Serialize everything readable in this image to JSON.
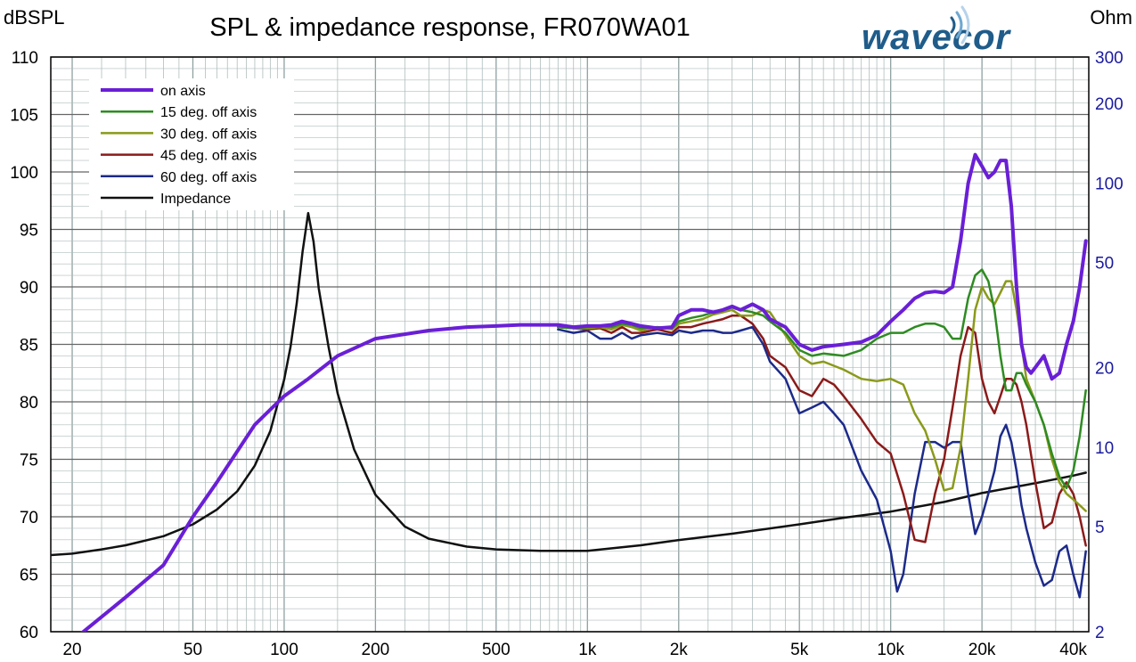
{
  "chart_data": {
    "type": "line",
    "title": "SPL & impedance response, FR070WA01",
    "ylabel": "dBSPL",
    "y2label": "Ohm",
    "xscale": "log",
    "xlim": [
      17,
      45000
    ],
    "ylim": [
      60,
      110
    ],
    "y2lim": [
      2,
      300
    ],
    "y2scale": "log",
    "grid": true,
    "legend_position": "top-left",
    "x_ticks": [
      "20",
      "50",
      "100",
      "200",
      "500",
      "1k",
      "2k",
      "5k",
      "10k",
      "20k",
      "40k"
    ],
    "x_tick_values": [
      20,
      50,
      100,
      200,
      500,
      1000,
      2000,
      5000,
      10000,
      20000,
      40000
    ],
    "y_ticks": [
      "60",
      "65",
      "70",
      "75",
      "80",
      "85",
      "90",
      "95",
      "100",
      "105",
      "110"
    ],
    "y_tick_values": [
      60,
      65,
      70,
      75,
      80,
      85,
      90,
      95,
      100,
      105,
      110
    ],
    "y2_ticks": [
      "2",
      "5",
      "10",
      "20",
      "50",
      "100",
      "200",
      "300"
    ],
    "y2_tick_values": [
      2,
      5,
      10,
      20,
      50,
      100,
      200,
      300
    ],
    "series": [
      {
        "name": "on axis",
        "color": "#6a1fd6",
        "axis": "left",
        "width": 4,
        "x": [
          17,
          20,
          30,
          40,
          50,
          60,
          80,
          100,
          120,
          150,
          200,
          300,
          400,
          500,
          600,
          800,
          900,
          1000,
          1100,
          1200,
          1300,
          1400,
          1500,
          1700,
          1900,
          2000,
          2200,
          2400,
          2600,
          2800,
          3000,
          3200,
          3500,
          3800,
          4000,
          4500,
          5000,
          5500,
          6000,
          7000,
          8000,
          9000,
          10000,
          11000,
          12000,
          13000,
          14000,
          15000,
          16000,
          17000,
          18000,
          19000,
          20000,
          21000,
          22000,
          23000,
          24000,
          25000,
          26000,
          27000,
          28000,
          29000,
          30000,
          32000,
          34000,
          36000,
          38000,
          40000,
          42000,
          44000
        ],
        "y": [
          57.0,
          59.2,
          63.0,
          65.8,
          70.0,
          73.0,
          78.0,
          80.5,
          82.0,
          84.0,
          85.5,
          86.2,
          86.5,
          86.6,
          86.7,
          86.7,
          86.5,
          86.6,
          86.6,
          86.7,
          87.0,
          86.8,
          86.6,
          86.4,
          86.5,
          87.5,
          88.0,
          88.0,
          87.8,
          88.0,
          88.3,
          88.0,
          88.5,
          88.0,
          87.2,
          86.5,
          85.0,
          84.5,
          84.8,
          85.0,
          85.2,
          85.8,
          87.0,
          88.0,
          89.0,
          89.5,
          89.6,
          89.5,
          90.0,
          94.0,
          99.0,
          101.5,
          100.5,
          99.5,
          100.0,
          101.0,
          101.0,
          97.0,
          90.0,
          85.0,
          83.0,
          82.5,
          83.0,
          84.0,
          82.0,
          82.5,
          85.0,
          87.0,
          90.0,
          94.0
        ]
      },
      {
        "name": "15 deg. off axis",
        "color": "#2e8b22",
        "axis": "left",
        "width": 2.5,
        "x": [
          800,
          900,
          1000,
          1100,
          1200,
          1300,
          1400,
          1500,
          1700,
          1900,
          2000,
          2200,
          2400,
          2600,
          2800,
          3000,
          3200,
          3500,
          3800,
          4000,
          4500,
          5000,
          5500,
          6000,
          7000,
          8000,
          9000,
          10000,
          11000,
          12000,
          13000,
          14000,
          15000,
          16000,
          17000,
          18000,
          19000,
          20000,
          21000,
          22000,
          23000,
          24000,
          25000,
          26000,
          27000,
          28000,
          30000,
          32000,
          34000,
          36000,
          38000,
          40000,
          42000,
          44000
        ],
        "y": [
          86.5,
          86.4,
          86.5,
          86.6,
          86.5,
          86.8,
          86.7,
          86.4,
          86.5,
          86.4,
          87.0,
          87.3,
          87.5,
          87.8,
          88.0,
          88.2,
          88.0,
          87.8,
          87.5,
          87.0,
          86.0,
          84.5,
          84.0,
          84.2,
          84.0,
          84.5,
          85.5,
          86.0,
          86.0,
          86.5,
          86.8,
          86.8,
          86.5,
          85.5,
          85.5,
          89.0,
          91.0,
          91.5,
          90.5,
          88.0,
          84.0,
          81.0,
          81.0,
          82.5,
          82.5,
          81.5,
          80.0,
          78.0,
          75.5,
          73.5,
          72.5,
          74.0,
          77.0,
          81.0
        ]
      },
      {
        "name": "30 deg. off axis",
        "color": "#8a9a1a",
        "axis": "left",
        "width": 2.5,
        "x": [
          800,
          900,
          1000,
          1100,
          1200,
          1300,
          1400,
          1500,
          1700,
          1900,
          2000,
          2200,
          2400,
          2600,
          2800,
          3000,
          3200,
          3500,
          3800,
          4000,
          4500,
          5000,
          5500,
          6000,
          7000,
          8000,
          9000,
          10000,
          11000,
          12000,
          13000,
          14000,
          15000,
          16000,
          17000,
          18000,
          19000,
          20000,
          21000,
          22000,
          23000,
          24000,
          25000,
          26000,
          27000,
          28000,
          30000,
          32000,
          34000,
          36000,
          38000,
          40000,
          42000,
          44000
        ],
        "y": [
          86.5,
          86.4,
          86.4,
          86.5,
          86.3,
          86.7,
          86.5,
          86.2,
          86.5,
          86.3,
          86.8,
          87.0,
          87.2,
          87.6,
          87.8,
          88.0,
          87.5,
          87.5,
          88.0,
          87.8,
          85.8,
          84.0,
          83.3,
          83.5,
          82.8,
          82.0,
          81.8,
          82.0,
          81.5,
          79.0,
          77.5,
          75.0,
          72.3,
          72.5,
          76.0,
          82.0,
          88.0,
          90.0,
          89.0,
          88.5,
          89.5,
          90.5,
          90.5,
          88.0,
          85.0,
          82.0,
          80.0,
          78.0,
          75.0,
          73.0,
          72.0,
          71.5,
          71.0,
          70.5
        ]
      },
      {
        "name": "45 deg. off axis",
        "color": "#8b1a1a",
        "axis": "left",
        "width": 2.5,
        "x": [
          800,
          900,
          1000,
          1100,
          1200,
          1300,
          1400,
          1500,
          1700,
          1900,
          2000,
          2200,
          2400,
          2600,
          2800,
          3000,
          3200,
          3500,
          3800,
          4000,
          4500,
          5000,
          5500,
          6000,
          6500,
          7000,
          8000,
          9000,
          10000,
          11000,
          12000,
          13000,
          14000,
          15000,
          16000,
          17000,
          18000,
          19000,
          20000,
          21000,
          22000,
          23000,
          24000,
          25000,
          26000,
          27000,
          28000,
          30000,
          32000,
          34000,
          36000,
          38000,
          40000,
          42000,
          44000
        ],
        "y": [
          86.5,
          86.4,
          86.3,
          86.4,
          86.0,
          86.5,
          86.0,
          86.0,
          86.3,
          86.0,
          86.5,
          86.5,
          86.8,
          87.0,
          87.2,
          87.5,
          87.5,
          86.8,
          85.5,
          84.0,
          83.0,
          81.0,
          80.5,
          82.0,
          81.5,
          80.5,
          78.5,
          76.5,
          75.5,
          72.0,
          68.0,
          67.8,
          72.0,
          75.0,
          79.5,
          84.0,
          86.5,
          86.0,
          82.0,
          80.0,
          79.0,
          80.5,
          82.0,
          82.0,
          81.5,
          80.0,
          78.0,
          73.0,
          69.0,
          69.5,
          72.0,
          73.0,
          72.0,
          70.0,
          67.5
        ]
      },
      {
        "name": "60 deg. off axis",
        "color": "#1c2a8a",
        "axis": "left",
        "width": 2.5,
        "x": [
          800,
          900,
          1000,
          1100,
          1200,
          1300,
          1400,
          1500,
          1700,
          1900,
          2000,
          2200,
          2400,
          2600,
          2800,
          3000,
          3200,
          3500,
          3800,
          4000,
          4500,
          5000,
          5500,
          6000,
          6500,
          7000,
          8000,
          9000,
          10000,
          10500,
          11000,
          12000,
          13000,
          14000,
          15000,
          16000,
          17000,
          18000,
          19000,
          20000,
          21000,
          22000,
          23000,
          24000,
          25000,
          26000,
          27000,
          28000,
          30000,
          32000,
          34000,
          36000,
          38000,
          40000,
          42000,
          44000
        ],
        "y": [
          86.3,
          86.0,
          86.2,
          85.5,
          85.5,
          86.0,
          85.5,
          85.8,
          86.0,
          85.8,
          86.2,
          86.0,
          86.2,
          86.2,
          86.0,
          86.0,
          86.2,
          86.5,
          85.0,
          83.5,
          82.0,
          79.0,
          79.5,
          80.0,
          79.0,
          78.0,
          74.0,
          71.5,
          67.0,
          63.5,
          65.0,
          72.0,
          76.5,
          76.5,
          76.0,
          76.5,
          76.5,
          72.0,
          68.5,
          70.0,
          72.0,
          74.0,
          77.0,
          78.0,
          76.5,
          74.0,
          71.0,
          69.0,
          66.0,
          64.0,
          64.5,
          67.0,
          67.5,
          65.0,
          63.0,
          67.0
        ]
      },
      {
        "name": "Impedance",
        "color": "#111111",
        "axis": "right",
        "width": 2.5,
        "x": [
          17,
          20,
          25,
          30,
          40,
          50,
          60,
          70,
          80,
          90,
          100,
          105,
          110,
          115,
          120,
          125,
          130,
          140,
          150,
          170,
          200,
          250,
          300,
          400,
          500,
          700,
          1000,
          1500,
          2000,
          3000,
          5000,
          7000,
          10000,
          15000,
          20000,
          30000,
          40000,
          44000
        ],
        "y": [
          3.9,
          3.95,
          4.1,
          4.25,
          4.6,
          5.1,
          5.8,
          6.8,
          8.5,
          11.5,
          18.0,
          24.0,
          35.0,
          55.0,
          77.0,
          60.0,
          40.0,
          24.0,
          16.0,
          9.8,
          6.6,
          5.0,
          4.5,
          4.2,
          4.1,
          4.05,
          4.05,
          4.25,
          4.45,
          4.7,
          5.1,
          5.4,
          5.7,
          6.2,
          6.7,
          7.3,
          7.8,
          8.0
        ]
      }
    ]
  },
  "legend": {
    "items": [
      "on axis",
      "15 deg. off axis",
      "30 deg. off axis",
      "45 deg. off axis",
      "60 deg. off axis",
      "Impedance"
    ]
  },
  "logo": {
    "text": "wavecor",
    "color": "#1f5c8a"
  },
  "colors": {
    "right_axis_labels": "#1a1aa0",
    "grid": "#b0bdbd",
    "grid_major": "#8fa0a0"
  }
}
